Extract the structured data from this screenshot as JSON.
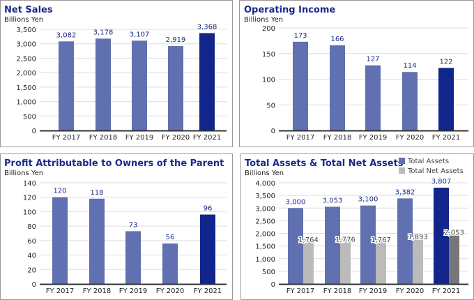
{
  "colors": {
    "bar": "#6070b0",
    "bar_highlight": "#12258a",
    "bar2": "#bbbbbb",
    "bar2_highlight": "#777777",
    "title": "#1a2a8a",
    "grid": "#dddddd",
    "border": "#999999"
  },
  "chart_data": [
    {
      "type": "bar",
      "title": "Net Sales",
      "ylabel": "Billions Yen",
      "categories": [
        "FY 2017",
        "FY 2018",
        "FY 2019",
        "FY 2020",
        "FY 2021"
      ],
      "series": [
        {
          "values": [
            3082,
            3178,
            3107,
            2919,
            3368
          ],
          "labels": [
            "3,082",
            "3,178",
            "3,107",
            "2,919",
            "3,368"
          ]
        }
      ],
      "ylim": [
        0,
        3500
      ],
      "yticks": [
        0,
        500,
        1000,
        1500,
        2000,
        2500,
        3000,
        3500
      ],
      "ytick_labels": [
        "0",
        "500",
        "1,000",
        "1,500",
        "2,000",
        "2,500",
        "3,000",
        "3,500"
      ],
      "grid": true,
      "highlight": "FY 2021"
    },
    {
      "type": "bar",
      "title": "Operating Income",
      "ylabel": "Billions Yen",
      "categories": [
        "FY 2017",
        "FY 2018",
        "FY 2019",
        "FY 2020",
        "FY 2021"
      ],
      "series": [
        {
          "values": [
            173,
            166,
            127,
            114,
            122
          ],
          "labels": [
            "173",
            "166",
            "127",
            "114",
            "122"
          ]
        }
      ],
      "ylim": [
        0,
        200
      ],
      "yticks": [
        0,
        50,
        100,
        150,
        200
      ],
      "ytick_labels": [
        "0",
        "50",
        "100",
        "150",
        "200"
      ],
      "grid": true,
      "highlight": "FY 2021"
    },
    {
      "type": "bar",
      "title": "Profit Attributable to Owners of the Parent",
      "ylabel": "Billions Yen",
      "categories": [
        "FY 2017",
        "FY 2018",
        "FY 2019",
        "FY 2020",
        "FY 2021"
      ],
      "series": [
        {
          "values": [
            120,
            118,
            73,
            56,
            96
          ],
          "labels": [
            "120",
            "118",
            "73",
            "56",
            "96"
          ]
        }
      ],
      "ylim": [
        0,
        140
      ],
      "yticks": [
        0,
        20,
        40,
        60,
        80,
        100,
        120,
        140
      ],
      "ytick_labels": [
        "0",
        "20",
        "40",
        "60",
        "80",
        "100",
        "120",
        "140"
      ],
      "grid": true,
      "highlight": "FY 2021"
    },
    {
      "type": "bar",
      "title": "Total Assets & Total Net Assets",
      "ylabel": "Billions Yen",
      "categories": [
        "FY 2017",
        "FY 2018",
        "FY 2019",
        "FY 2020",
        "FY 2021"
      ],
      "series": [
        {
          "name": "Total Assets",
          "values": [
            3000,
            3053,
            3100,
            3382,
            3807
          ],
          "labels": [
            "3,000",
            "3,053",
            "3,100",
            "3,382",
            "3,807"
          ]
        },
        {
          "name": "Total Net Assets",
          "values": [
            1764,
            1776,
            1767,
            1893,
            2053
          ],
          "labels": [
            "1,764",
            "1,776",
            "1,767",
            "1,893",
            "2,053"
          ]
        }
      ],
      "ylim": [
        0,
        4000
      ],
      "yticks": [
        0,
        500,
        1000,
        1500,
        2000,
        2500,
        3000,
        3500,
        4000
      ],
      "ytick_labels": [
        "0",
        "500",
        "1,000",
        "1,500",
        "2,000",
        "2,500",
        "3,000",
        "3,500",
        "4,000"
      ],
      "grid": true,
      "legend": "top-right",
      "highlight": "FY 2021"
    }
  ]
}
